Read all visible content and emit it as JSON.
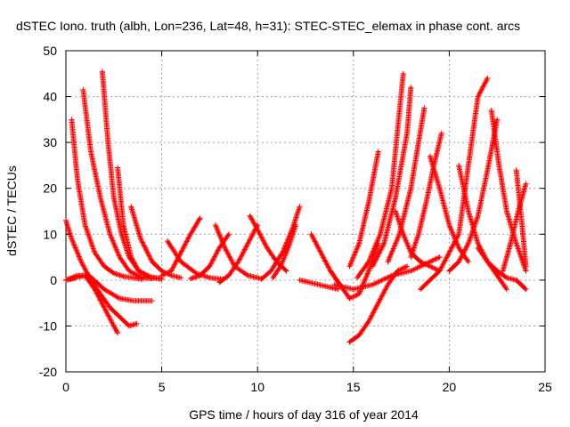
{
  "chart_data": {
    "type": "scatter",
    "title": "dSTEC Iono. truth (albh, Lon=236, Lat=48, h=31): STEC-STEC_elemax in phase cont. arcs",
    "xlabel": "GPS time / hours of day 316 of year 2014",
    "ylabel": "dSTEC  / TECUs",
    "xlim": [
      0,
      25
    ],
    "ylim": [
      -20,
      50
    ],
    "xticks": [
      0,
      5,
      10,
      15,
      20,
      25
    ],
    "yticks": [
      -20,
      -10,
      0,
      10,
      20,
      30,
      40,
      50
    ],
    "xtick_labels": [
      "0",
      "5",
      "10",
      "15",
      "20",
      "25"
    ],
    "ytick_labels": [
      "-20",
      "-10",
      "0",
      "10",
      "20",
      "30",
      "40",
      "50"
    ],
    "grid": true,
    "marker": "+",
    "color": "#ff0000",
    "series": [
      {
        "x": [
          0.0,
          0.3,
          0.8,
          1.3,
          1.8,
          2.3,
          2.8,
          3.3,
          3.7
        ],
        "y": [
          13,
          9,
          4,
          0,
          -3,
          -6,
          -8,
          -10,
          -9.5
        ]
      },
      {
        "x": [
          0.0,
          0.5,
          1.0,
          1.5,
          2.0,
          2.5,
          2.7
        ],
        "y": [
          0,
          0.5,
          1,
          -2,
          -6,
          -10,
          -11.5
        ]
      },
      {
        "x": [
          0.0,
          0.6,
          1.2,
          2.0,
          2.8,
          3.5,
          4.5
        ],
        "y": [
          0,
          1,
          1,
          -2,
          -4,
          -4.5,
          -4.5
        ]
      },
      {
        "x": [
          0.3,
          0.6,
          1.0,
          1.5,
          2.0,
          2.5,
          3.0,
          3.5,
          4.0
        ],
        "y": [
          35,
          22,
          12,
          6,
          3,
          1.5,
          0.8,
          0.5,
          0.2
        ]
      },
      {
        "x": [
          0.9,
          1.3,
          1.8,
          2.3,
          2.8,
          3.3,
          4.0,
          4.5
        ],
        "y": [
          41.5,
          28,
          18,
          10,
          5,
          2,
          0.5,
          0.3
        ]
      },
      {
        "x": [
          1.9,
          2.2,
          2.5,
          2.9,
          3.3,
          3.8,
          4.5,
          5.0
        ],
        "y": [
          45.5,
          30,
          18,
          10,
          5,
          2,
          0.5,
          0.2
        ]
      },
      {
        "x": [
          2.7,
          3.0,
          3.4,
          3.8,
          4.3,
          5.0
        ],
        "y": [
          24.5,
          12,
          5,
          2,
          0.8,
          0.3
        ]
      },
      {
        "x": [
          3.4,
          3.9,
          4.5,
          5.0,
          5.5,
          6.0
        ],
        "y": [
          16,
          9,
          4,
          2,
          1,
          0.5
        ]
      },
      {
        "x": [
          0.0,
          0.2,
          0.5
        ],
        "y": [
          0,
          0.2,
          0.5
        ]
      },
      {
        "x": [
          5.0,
          5.5,
          6.0,
          6.5,
          7.0
        ],
        "y": [
          1,
          2,
          6,
          10,
          13.5
        ]
      },
      {
        "x": [
          5.3,
          6.0,
          6.8,
          7.5,
          8.2
        ],
        "y": [
          8.5,
          4,
          1.5,
          0.5,
          0.2
        ]
      },
      {
        "x": [
          6.5,
          7.0,
          7.5,
          8.0,
          8.5
        ],
        "y": [
          0.3,
          1,
          3,
          7,
          10
        ]
      },
      {
        "x": [
          7.8,
          8.3,
          8.8,
          9.5,
          10.2
        ],
        "y": [
          12,
          7,
          3,
          1,
          0.3
        ]
      },
      {
        "x": [
          8.0,
          8.5,
          9.0,
          9.5,
          10.0
        ],
        "y": [
          -0.5,
          1,
          4,
          8,
          12
        ]
      },
      {
        "x": [
          9.6,
          10.0,
          10.5,
          11.0,
          11.5
        ],
        "y": [
          14,
          11,
          7,
          4,
          2
        ]
      },
      {
        "x": [
          10.2,
          10.7,
          11.3,
          11.8,
          12.2
        ],
        "y": [
          0.2,
          2,
          6,
          11,
          16
        ]
      },
      {
        "x": [
          10.8,
          11.2,
          11.6,
          12.0
        ],
        "y": [
          0.5,
          3,
          7,
          12
        ]
      },
      {
        "x": [
          12.2,
          12.7,
          13.2,
          13.7,
          14.2
        ],
        "y": [
          0,
          -0.5,
          -1,
          -1.5,
          -2
        ]
      },
      {
        "x": [
          12.8,
          13.3,
          13.8,
          14.3
        ],
        "y": [
          10,
          6,
          2,
          -1
        ]
      },
      {
        "x": [
          13.8,
          14.3,
          14.8,
          15.3,
          15.8,
          16.3
        ],
        "y": [
          2,
          -1,
          -4,
          -3,
          2,
          8
        ]
      },
      {
        "x": [
          14.8,
          15.3,
          15.8,
          16.3,
          16.8,
          17.3,
          17.8
        ],
        "y": [
          -13.5,
          -12,
          -9,
          -5,
          -1,
          2,
          3
        ]
      },
      {
        "x": [
          14.8,
          15.3,
          15.8,
          16.3
        ],
        "y": [
          3,
          8,
          17,
          28
        ]
      },
      {
        "x": [
          15.2,
          15.8,
          16.4,
          17.0,
          17.6
        ],
        "y": [
          0.5,
          4,
          10,
          20,
          45
        ]
      },
      {
        "x": [
          16.0,
          16.6,
          17.2,
          17.8,
          18.0
        ],
        "y": [
          3,
          8,
          18,
          32,
          42
        ]
      },
      {
        "x": [
          16.8,
          17.4,
          18.0,
          18.4,
          18.7
        ],
        "y": [
          4,
          10,
          20,
          30,
          37.5
        ]
      },
      {
        "x": [
          17.2,
          17.6,
          18.0,
          18.5,
          19.0,
          19.5
        ],
        "y": [
          15,
          10,
          6,
          4,
          3,
          2
        ]
      },
      {
        "x": [
          18.0,
          18.4,
          18.8,
          19.2,
          19.6
        ],
        "y": [
          5,
          10,
          17,
          25,
          32
        ]
      },
      {
        "x": [
          19.0,
          19.5,
          20.0,
          20.5,
          21.0
        ],
        "y": [
          27,
          20,
          12,
          7,
          4
        ]
      },
      {
        "x": [
          18.5,
          19.5,
          20.5,
          21.0,
          21.5,
          22.0
        ],
        "y": [
          -2,
          2,
          10,
          25,
          40,
          44
        ]
      },
      {
        "x": [
          20.0,
          20.5,
          21.0,
          21.5,
          22.0,
          22.5
        ],
        "y": [
          2,
          4,
          8,
          14,
          24,
          35
        ]
      },
      {
        "x": [
          20.5,
          21.0,
          21.5,
          22.0,
          22.5,
          23.0
        ],
        "y": [
          25,
          15,
          8,
          4,
          1,
          -2
        ]
      },
      {
        "x": [
          22.2,
          22.6,
          23.0,
          23.5,
          24.0
        ],
        "y": [
          37,
          25,
          15,
          8,
          2
        ]
      },
      {
        "x": [
          22.8,
          23.2,
          23.6,
          24.0
        ],
        "y": [
          2,
          8,
          15,
          21
        ]
      },
      {
        "x": [
          23.5,
          23.8,
          24.0
        ],
        "y": [
          24,
          12,
          3
        ]
      },
      {
        "x": [
          21.5,
          22.0,
          22.5,
          23.0,
          23.5,
          24.0
        ],
        "y": [
          7,
          4,
          2,
          0.5,
          0,
          -2
        ]
      },
      {
        "x": [
          14.0,
          15.0,
          16.0,
          17.0,
          18.0,
          19.0,
          19.5
        ],
        "y": [
          -1,
          -2,
          -1,
          1,
          2,
          4,
          5
        ]
      }
    ]
  }
}
